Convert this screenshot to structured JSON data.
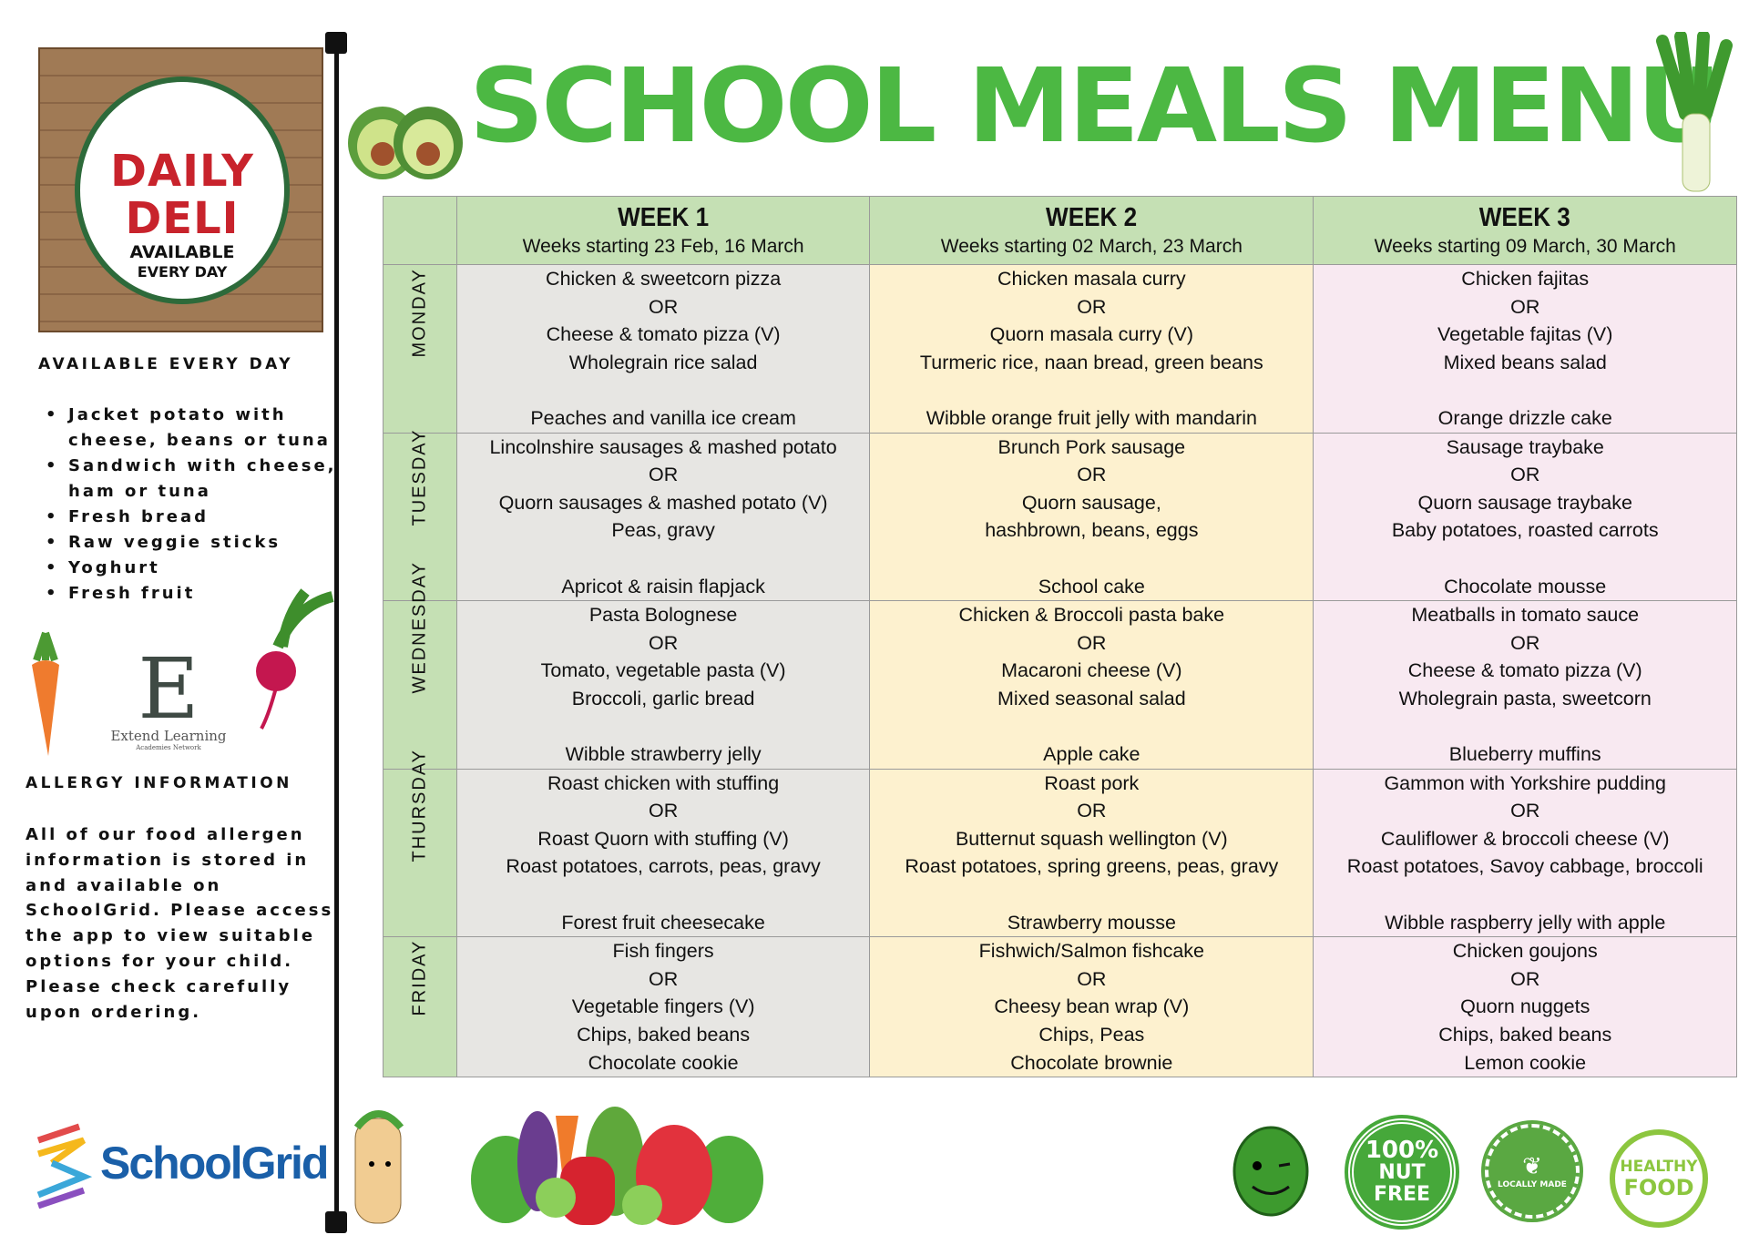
{
  "header": {
    "title": "SCHOOL MEALS MENU"
  },
  "deli_logo": {
    "line1": "DAILY",
    "line2": "DELI",
    "line3": "AVAILABLE",
    "line4": "EVERY DAY"
  },
  "available": {
    "heading": "AVAILABLE EVERY DAY",
    "items": [
      "Jacket potato with cheese, beans or tuna",
      "Sandwich with cheese, ham or tuna",
      "Fresh bread",
      "Raw veggie sticks",
      "Yoghurt",
      "Fresh fruit"
    ]
  },
  "extend_logo": {
    "letter": "E",
    "name": "Extend Learning",
    "sub": "Academies Network"
  },
  "allergy": {
    "heading": "ALLERGY INFORMATION",
    "text": "All of our food allergen information is stored in and available on SchoolGrid. Please access the app to view suitable options for your child. Please check carefully upon ordering."
  },
  "schoolgrid_logo": "SchoolGrid",
  "badges": {
    "nut_free": [
      "100%",
      "NUT",
      "FREE"
    ],
    "locally_made": "LOCALLY MADE",
    "healthy_food": [
      "HEALTHY",
      "FOOD"
    ]
  },
  "colors": {
    "title_green": "#4cb843",
    "header_green": "#c5e0b4",
    "week1_bg": "#e7e6e3",
    "week2_bg": "#fdf1cf",
    "week3_bg": "#f8e9f1"
  },
  "weeks": [
    {
      "title": "WEEK 1",
      "dates": "Weeks starting 23 Feb, 16 March"
    },
    {
      "title": "WEEK 2",
      "dates": "Weeks starting 02 March, 23 March"
    },
    {
      "title": "WEEK 3",
      "dates": "Weeks starting 09 March, 30 March"
    }
  ],
  "days": [
    {
      "name": "MONDAY",
      "meals": [
        [
          "Chicken & sweetcorn pizza",
          "OR",
          "Cheese & tomato pizza (V)",
          "Wholegrain rice salad",
          "",
          "Peaches and vanilla ice cream"
        ],
        [
          "Chicken masala curry",
          "OR",
          "Quorn masala curry (V)",
          "Turmeric rice, naan bread, green beans",
          "",
          "Wibble orange fruit jelly with mandarin"
        ],
        [
          "Chicken fajitas",
          "OR",
          "Vegetable fajitas (V)",
          "Mixed beans salad",
          "",
          "Orange drizzle cake"
        ]
      ]
    },
    {
      "name": "TUESDAY",
      "meals": [
        [
          "Lincolnshire sausages & mashed potato",
          "OR",
          "Quorn sausages & mashed potato (V)",
          "Peas, gravy",
          "",
          "Apricot & raisin flapjack"
        ],
        [
          "Brunch Pork sausage",
          "OR",
          "Quorn sausage,",
          "hashbrown, beans, eggs",
          "",
          "School cake"
        ],
        [
          "Sausage traybake",
          "OR",
          "Quorn sausage traybake",
          "Baby potatoes, roasted carrots",
          "",
          "Chocolate mousse"
        ]
      ]
    },
    {
      "name": "WEDNESDAY",
      "meals": [
        [
          "Pasta Bolognese",
          "OR",
          "Tomato, vegetable pasta (V)",
          "Broccoli, garlic bread",
          "",
          "Wibble strawberry jelly"
        ],
        [
          "Chicken & Broccoli pasta bake",
          "OR",
          "Macaroni cheese (V)",
          "Mixed seasonal salad",
          "",
          "Apple cake"
        ],
        [
          "Meatballs in tomato sauce",
          "OR",
          "Cheese & tomato pizza (V)",
          "Wholegrain pasta, sweetcorn",
          "",
          "Blueberry muffins"
        ]
      ]
    },
    {
      "name": "THURSDAY",
      "meals": [
        [
          "Roast chicken with stuffing",
          "OR",
          "Roast Quorn with stuffing (V)",
          "Roast potatoes, carrots, peas, gravy",
          "",
          "Forest fruit cheesecake"
        ],
        [
          "Roast pork",
          "OR",
          "Butternut squash wellington (V)",
          "Roast potatoes, spring greens, peas, gravy",
          "",
          "Strawberry mousse"
        ],
        [
          "Gammon with Yorkshire pudding",
          "OR",
          "Cauliflower & broccoli cheese (V)",
          "Roast potatoes, Savoy cabbage, broccoli",
          "",
          "Wibble raspberry jelly with apple"
        ]
      ]
    },
    {
      "name": "FRIDAY",
      "meals": [
        [
          "Fish fingers",
          "OR",
          "Vegetable fingers (V)",
          "Chips, baked beans",
          "Chocolate cookie"
        ],
        [
          "Fishwich/Salmon fishcake",
          "OR",
          "Cheesy bean wrap (V)",
          "Chips, Peas",
          "Chocolate brownie"
        ],
        [
          "Chicken goujons",
          "OR",
          "Quorn nuggets",
          "Chips, baked beans",
          "Lemon cookie"
        ]
      ]
    }
  ]
}
